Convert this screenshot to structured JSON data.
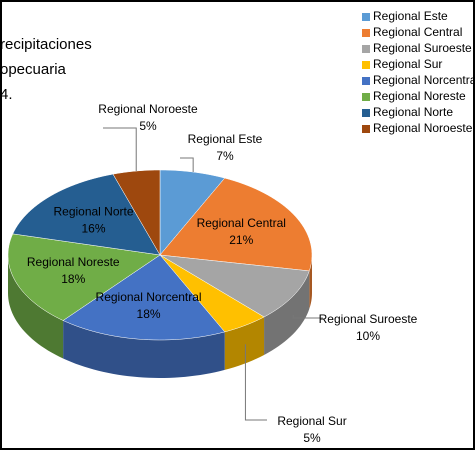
{
  "chart_data": {
    "type": "pie",
    "title": [
      "recipitaciones",
      "opecuaria",
      "4."
    ],
    "categories": [
      "Regional  Este",
      "Regional Central",
      "Regional Suroeste",
      "Regional Sur",
      "Regional Norcentral",
      "Regional Noreste",
      "Regional Norte",
      "Regional Noroeste"
    ],
    "values": [
      7,
      21,
      10,
      5,
      18,
      18,
      16,
      5
    ],
    "value_labels": [
      "7%",
      "21%",
      "10%",
      "5%",
      "18%",
      "18%",
      "16%",
      "5%"
    ],
    "colors": [
      "#5b9bd5",
      "#ed7d31",
      "#a5a5a5",
      "#ffc000",
      "#4472c4",
      "#70ad47",
      "#255e91",
      "#9e480e"
    ],
    "legend": "top-right"
  }
}
